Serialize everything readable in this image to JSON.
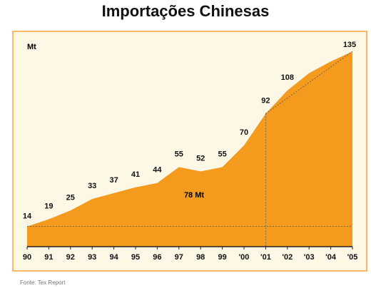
{
  "chart_data": {
    "type": "area",
    "title": "Importações Chinesas",
    "ylabel": "Mt",
    "x": [
      "90",
      "91",
      "92",
      "93",
      "94",
      "95",
      "96",
      "97",
      "98",
      "99",
      "'00",
      "'01",
      "'02",
      "'03",
      "'04",
      "'05"
    ],
    "values": [
      14,
      19,
      25,
      33,
      37,
      41,
      44,
      55,
      52,
      55,
      70,
      92,
      108,
      120,
      128,
      135
    ],
    "data_labels": [
      "14",
      "19",
      "25",
      "33",
      "37",
      "41",
      "44",
      "55",
      "52",
      "55",
      "70",
      "92",
      "108",
      "",
      "",
      "135"
    ],
    "ylim": [
      0,
      140
    ],
    "annotation": "78 Mt",
    "grid": false,
    "colors": {
      "area": "#f49b1e",
      "frame_bg": "#fdf7e6",
      "frame_border": "#f4a53a",
      "axis": "#222222",
      "dashed": "#555555"
    }
  },
  "source": "Fonte: Tex Report"
}
